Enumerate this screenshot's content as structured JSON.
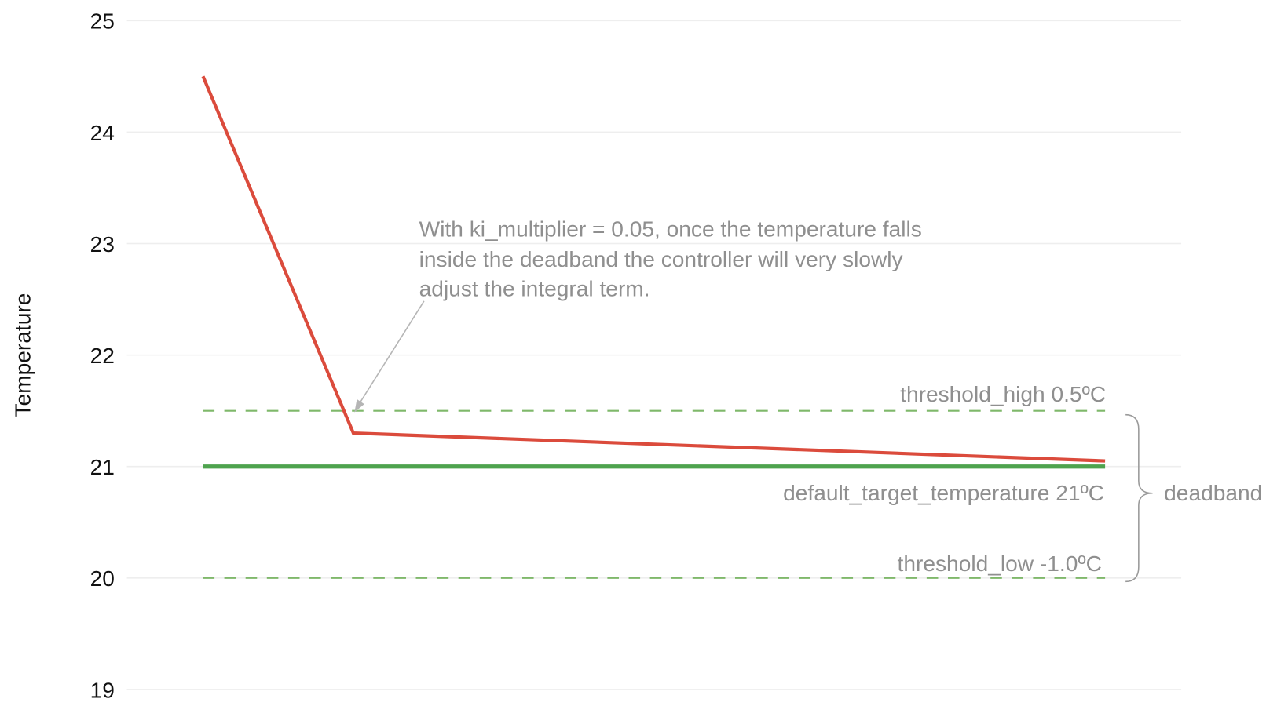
{
  "chart_data": {
    "type": "line",
    "title": "",
    "xlabel": "",
    "ylabel": "Temperature",
    "ylim": [
      19,
      25
    ],
    "yticks": [
      "25",
      "24",
      "23",
      "22",
      "21",
      "20",
      "19"
    ],
    "ytick_values": [
      25,
      24,
      23,
      22,
      21,
      20,
      19
    ],
    "grid": true,
    "x": [
      0,
      1,
      6
    ],
    "series": [
      {
        "values": [
          24.5,
          21.3,
          21.05
        ],
        "color": "#db4b3c",
        "style": "solid"
      },
      {
        "values": [
          21,
          21,
          21
        ],
        "color": "#4ea34e",
        "style": "solid"
      },
      {
        "values": [
          21.5,
          21.5,
          21.5
        ],
        "color": "#7fb86a",
        "style": "dashed"
      },
      {
        "values": [
          20,
          20,
          20
        ],
        "color": "#7fb86a",
        "style": "dashed"
      }
    ],
    "annotations": {
      "note_lines": [
        "With ki_multiplier = 0.05, once the temperature falls",
        "inside the deadband the controller will very slowly",
        "adjust the integral term."
      ],
      "threshold_high": "threshold_high  0.5ºC",
      "target": "default_target_temperature  21ºC",
      "threshold_low": "threshold_low  -1.0ºC",
      "deadband": "deadband"
    },
    "colors": {
      "annotation_text": "#8f8f8f",
      "grid": "#eeeeee"
    }
  }
}
